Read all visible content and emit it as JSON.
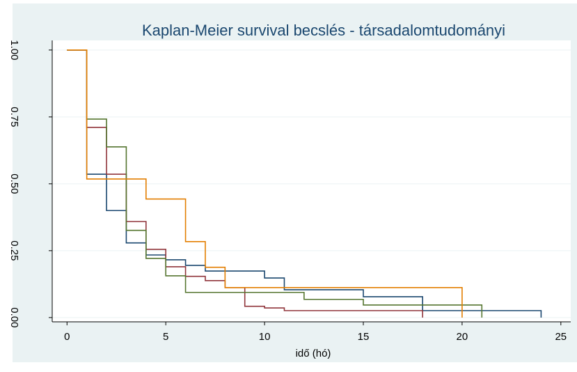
{
  "chart_data": {
    "type": "step",
    "title": "Kaplan-Meier survival becslés - társadalomtudományi",
    "x_label": "idő (hó)",
    "xlim": [
      -0.75,
      25.5
    ],
    "ylim": [
      -0.016,
      1.036
    ],
    "xticks": [
      0,
      5,
      10,
      15,
      20,
      25
    ],
    "yticks": [
      {
        "value": 0,
        "label": "0.00"
      },
      {
        "value": 0.25,
        "label": "0.25"
      },
      {
        "value": 0.5,
        "label": "0.50"
      },
      {
        "value": 0.75,
        "label": "0.75"
      },
      {
        "value": 1,
        "label": "1.00"
      }
    ],
    "grid": true,
    "series": [
      {
        "color": "#1a476f",
        "x": [
          0,
          1,
          2,
          3,
          4,
          5,
          6,
          7,
          10,
          11,
          15,
          18,
          24
        ],
        "values": [
          1,
          0.536,
          0.4,
          0.279,
          0.234,
          0.216,
          0.195,
          0.174,
          0.148,
          0.104,
          0.078,
          0.026,
          0
        ]
      },
      {
        "color": "#90353b",
        "x": [
          0,
          1,
          2,
          3,
          4,
          5,
          6,
          7,
          8,
          9,
          10,
          11,
          18
        ],
        "values": [
          1,
          0.711,
          0.536,
          0.359,
          0.255,
          0.19,
          0.154,
          0.138,
          0.112,
          0.042,
          0.036,
          0.026,
          0
        ]
      },
      {
        "color": "#55752f",
        "x": [
          0,
          1,
          2,
          3,
          4,
          5,
          6,
          12,
          15,
          21
        ],
        "values": [
          1,
          0.742,
          0.638,
          0.326,
          0.221,
          0.156,
          0.094,
          0.068,
          0.047,
          0
        ]
      },
      {
        "color": "#e37e00",
        "x": [
          0,
          1,
          4,
          6,
          7,
          8,
          20
        ],
        "values": [
          1,
          0.518,
          0.443,
          0.284,
          0.188,
          0.112,
          0
        ]
      }
    ]
  }
}
